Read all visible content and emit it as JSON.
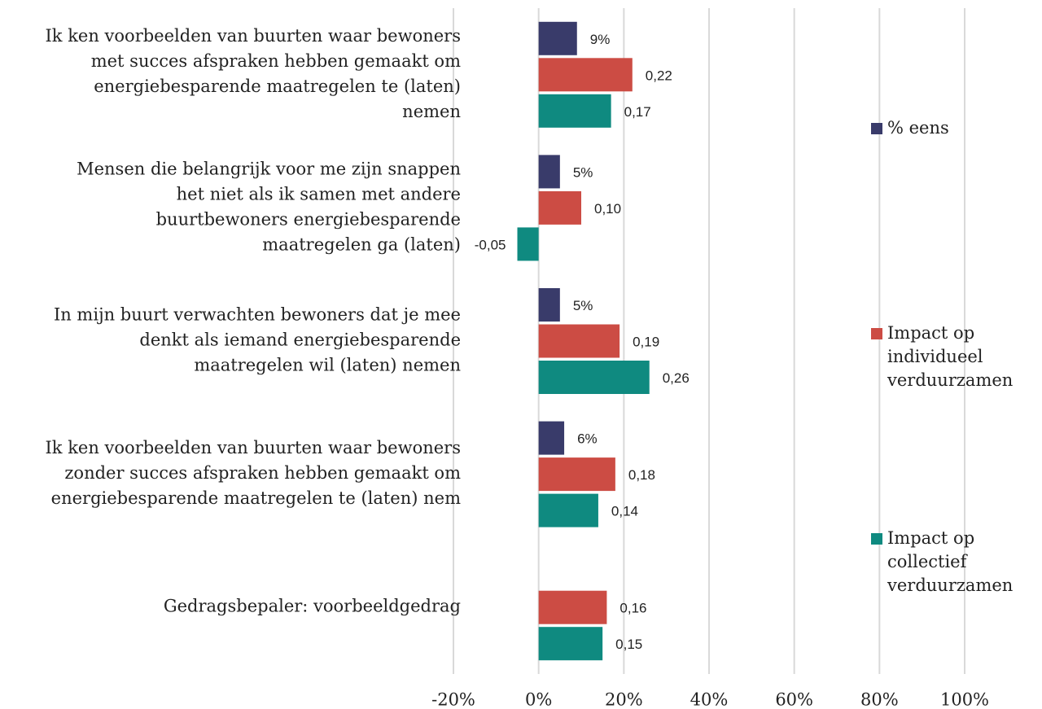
{
  "chart_data": {
    "type": "hbar",
    "categories": [
      [
        "Ik ken voorbeelden van buurten waar bewoners",
        "met succes afspraken hebben gemaakt om",
        "energiebesparende maatregelen te (laten)",
        "nemen"
      ],
      [
        "Mensen die belangrijk voor me zijn snappen",
        "het niet als ik samen met andere",
        "buurtbewoners energiebesparende",
        "maatregelen ga (laten)"
      ],
      [
        "In mijn buurt verwachten bewoners dat je mee",
        "denkt als iemand energiebesparende",
        "maatregelen wil (laten) nemen"
      ],
      [
        "Ik ken voorbeelden van buurten waar bewoners",
        "zonder succes afspraken hebben gemaakt om",
        "energiebesparende maatregelen te (laten) nem"
      ],
      [
        "Gedragsbepaler: voorbeeldgedrag"
      ]
    ],
    "series": [
      {
        "name": "% eens",
        "color": "#393b6a",
        "values": [
          9,
          5,
          5,
          6,
          null
        ],
        "value_labels": [
          "9%",
          "5%",
          "5%",
          "6%",
          null
        ]
      },
      {
        "name": "Impact op individueel verduurzamen",
        "color": "#cc4c44",
        "values": [
          22,
          10,
          19,
          18,
          16
        ],
        "value_labels": [
          "0,22",
          "0,10",
          "0,19",
          "0,18",
          "0,16"
        ]
      },
      {
        "name": "Impact op collectief verduurzamen",
        "color": "#0f8a80",
        "values": [
          17,
          -5,
          26,
          14,
          15
        ],
        "value_labels": [
          "0,17",
          "-0,05",
          "0,26",
          "0,14",
          "0,15"
        ]
      }
    ],
    "xlim": [
      -20,
      100
    ],
    "xticks": [
      {
        "value": -20,
        "label": "-20%"
      },
      {
        "value": 0,
        "label": "0%"
      },
      {
        "value": 20,
        "label": "20%"
      },
      {
        "value": 40,
        "label": "40%"
      },
      {
        "value": 60,
        "label": "60%"
      },
      {
        "value": 80,
        "label": "80%"
      },
      {
        "value": 100,
        "label": "100%"
      }
    ],
    "grid": true,
    "legend": "right"
  }
}
